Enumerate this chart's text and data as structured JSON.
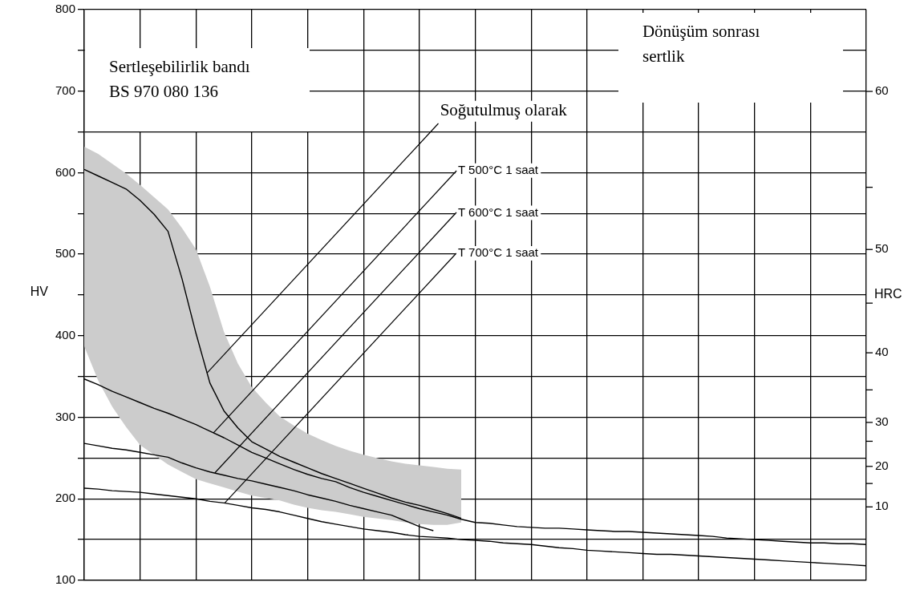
{
  "chart_data": {
    "type": "line",
    "categories": [
      null,
      null,
      null,
      null,
      null,
      null,
      null,
      null,
      null,
      null,
      null,
      null,
      null,
      null,
      null,
      null,
      null,
      null,
      null,
      null,
      null,
      null,
      null,
      null,
      null,
      null,
      null,
      null,
      null,
      null,
      null,
      null,
      null,
      null,
      null,
      null,
      null,
      null,
      null,
      null,
      null,
      null,
      null,
      null,
      null,
      null,
      null,
      null,
      null,
      null,
      null,
      null,
      null,
      null,
      null,
      null,
      null
    ],
    "annotations": [
      "Sertleşebilirlik bandı\nBS 970 080 136",
      "Dönüşüm sonrası\nsertlik",
      "10",
      "20",
      "30",
      "40",
      "50",
      "60"
    ],
    "ylabel": "HV",
    "y2label": "HRC",
    "ylim": [
      100,
      800
    ],
    "yticks": [
      100,
      {
        "value": 150,
        "label": null
      },
      200,
      {
        "value": 250,
        "label": null
      },
      300,
      {
        "value": 350,
        "label": null
      },
      400,
      {
        "value": 450,
        "label": null
      },
      500,
      {
        "value": 550,
        "label": null
      },
      600,
      {
        "value": 650,
        "label": null
      },
      700,
      {
        "value": 750,
        "label": null
      },
      800
    ],
    "tick_labels": "y",
    "grid": true,
    "marker": "none",
    "line_style": "solid",
    "series": [
      {
        "name": "Soğutulmuş olarak",
        "color": "#000000",
        "values": [
          604,
          596,
          588,
          580,
          566,
          549,
          528,
          470,
          403,
          342,
          308,
          287,
          270,
          261,
          252,
          245,
          238,
          231,
          225,
          219,
          213,
          207,
          201,
          196,
          192,
          187,
          182,
          176,
          null,
          null,
          null,
          null,
          null,
          null,
          null,
          null,
          null,
          null,
          null,
          null,
          null,
          null,
          null,
          null,
          null,
          null,
          null,
          null,
          null,
          null,
          null,
          null,
          null,
          null,
          null,
          null,
          null
        ],
        "upper": [
          632,
          623,
          611,
          599,
          585,
          570,
          555,
          532,
          506,
          460,
          405,
          366,
          337,
          318,
          301,
          290,
          280,
          272,
          265,
          259,
          254,
          250,
          246,
          243,
          241,
          239,
          237,
          236,
          null,
          null,
          null,
          null,
          null,
          null,
          null,
          null,
          null,
          null,
          null,
          null,
          null,
          null,
          null,
          null,
          null,
          null,
          null,
          null,
          null,
          null,
          null,
          null,
          null,
          null,
          null,
          null,
          null
        ],
        "lower": [
          387,
          345,
          313,
          288,
          266,
          254,
          242,
          233,
          224,
          219,
          214,
          209,
          204,
          201,
          198,
          193,
          189,
          186,
          184,
          181,
          178,
          176,
          174,
          171,
          169,
          168,
          168,
          171,
          null,
          null,
          null,
          null,
          null,
          null,
          null,
          null,
          null,
          null,
          null,
          null,
          null,
          null,
          null,
          null,
          null,
          null,
          null,
          null,
          null,
          null,
          null,
          null,
          null,
          null,
          null,
          null,
          null
        ]
      },
      {
        "name": "T 500°C 1 saat",
        "color": "#000000",
        "values": [
          347,
          340,
          332,
          325,
          318,
          311,
          305,
          298,
          291,
          283,
          275,
          266,
          257,
          250,
          243,
          236,
          230,
          225,
          221,
          214,
          208,
          203,
          198,
          193,
          188,
          184,
          180,
          175,
          171,
          170,
          168,
          166,
          165,
          164,
          164,
          163,
          162,
          161,
          160,
          160,
          159,
          158,
          157,
          156,
          155,
          154,
          152,
          151,
          150,
          149,
          148,
          147,
          146,
          146,
          145,
          145,
          144
        ]
      },
      {
        "name": "T 600°C 1 saat",
        "color": "#000000",
        "values": [
          268,
          265,
          262,
          260,
          257,
          254,
          251,
          244,
          238,
          233,
          229,
          225,
          222,
          218,
          214,
          210,
          205,
          201,
          197,
          192,
          188,
          184,
          180,
          173,
          166,
          161,
          null,
          null,
          null,
          null,
          null,
          null,
          null,
          null,
          null,
          null,
          null,
          null,
          null,
          null,
          null,
          null,
          null,
          null,
          null,
          null,
          null,
          null,
          null,
          null,
          null,
          null,
          null,
          null,
          null,
          null,
          null
        ]
      },
      {
        "name": "T 700°C 1 saat",
        "color": "#000000",
        "values": [
          213,
          212,
          210,
          209,
          208,
          206,
          204,
          202,
          200,
          197,
          195,
          192,
          189,
          187,
          184,
          180,
          176,
          172,
          169,
          166,
          163,
          161,
          159,
          156,
          154,
          153,
          152,
          150,
          149,
          148,
          146,
          145,
          144,
          142,
          140,
          139,
          137,
          136,
          135,
          134,
          133,
          132,
          132,
          131,
          130,
          129,
          128,
          127,
          126,
          125,
          124,
          123,
          122,
          121,
          120,
          119,
          118
        ]
      }
    ]
  }
}
